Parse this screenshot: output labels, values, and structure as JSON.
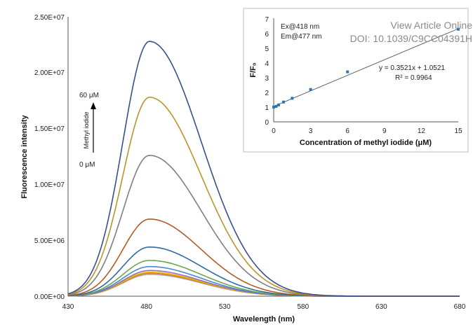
{
  "watermark": {
    "line1": "View Article Online",
    "line2": "DOI: 10.1039/C9CC04391H"
  },
  "chart_data": [
    {
      "type": "line",
      "xlabel": "Wavelength (nm)",
      "ylabel": "Fluorescence intensity",
      "xlim": [
        430,
        680
      ],
      "ylim": [
        0,
        25000000
      ],
      "x_ticks": [
        "430",
        "480",
        "530",
        "580",
        "630",
        "680"
      ],
      "y_ticks": [
        "0.00E+00",
        "5.00E+06",
        "1.00E+07",
        "1.50E+07",
        "2.00E+07",
        "2.50E+07"
      ],
      "annotation": {
        "top": "60 μM",
        "bottom": "0 μM",
        "label": "Methyl iodide"
      },
      "peak_x": 482,
      "series": [
        {
          "peak": 22800000,
          "color": "#3a4f8f"
        },
        {
          "peak": 17800000,
          "color": "#b8962b"
        },
        {
          "peak": 12600000,
          "color": "#7f7f7f"
        },
        {
          "peak": 6900000,
          "color": "#b55a22"
        },
        {
          "peak": 4400000,
          "color": "#2f6aa6"
        },
        {
          "peak": 3200000,
          "color": "#6aa84f"
        },
        {
          "peak": 2650000,
          "color": "#4e87c9"
        },
        {
          "peak": 2300000,
          "color": "#8e6fb5"
        },
        {
          "peak": 2150000,
          "color": "#f0b400"
        },
        {
          "peak": 2050000,
          "color": "#d9822b"
        },
        {
          "peak": 1950000,
          "color": "#a6a6a6"
        }
      ]
    },
    {
      "type": "scatter",
      "xlabel": "Concentration of methyl iodide (μM)",
      "ylabel": "F/F₀",
      "xlim": [
        0,
        15
      ],
      "ylim": [
        0,
        7
      ],
      "x_ticks": [
        "0",
        "3",
        "6",
        "9",
        "12",
        "15"
      ],
      "y_ticks": [
        "0",
        "1",
        "2",
        "3",
        "4",
        "5",
        "6",
        "7"
      ],
      "notes": [
        "Ex@418 nm",
        "Em@477 nm"
      ],
      "equation": "y = 0.3521x + 1.0521",
      "r2": "R² = 0.9964",
      "fit": {
        "slope": 0.3521,
        "intercept": 1.0521
      },
      "point_color": "#2e75b6",
      "x": [
        0,
        0.2,
        0.4,
        0.8,
        1.5,
        3,
        6,
        15
      ],
      "y": [
        1.0,
        1.05,
        1.15,
        1.35,
        1.6,
        2.2,
        3.4,
        6.3
      ]
    }
  ]
}
